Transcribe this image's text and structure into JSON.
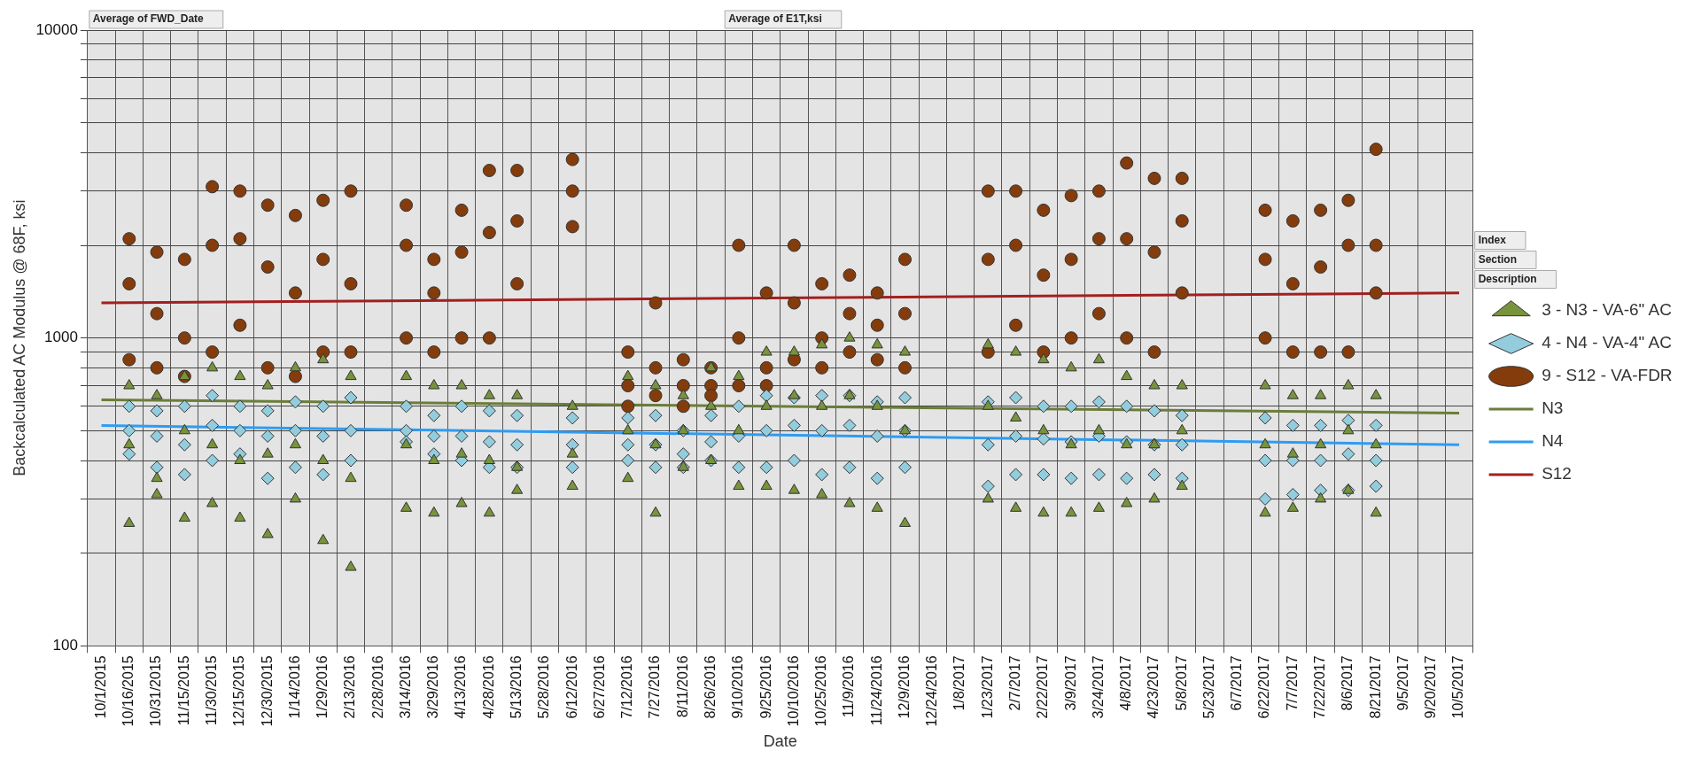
{
  "chart_data": {
    "type": "scatter",
    "xlabel": "Date",
    "ylabel": "Backcalculated AC Modulus @ 68F, ksi",
    "categories": [
      "10/1/2015",
      "10/16/2015",
      "10/31/2015",
      "11/15/2015",
      "11/30/2015",
      "12/15/2015",
      "12/30/2015",
      "1/14/2016",
      "1/29/2016",
      "2/13/2016",
      "2/28/2016",
      "3/14/2016",
      "3/29/2016",
      "4/13/2016",
      "4/28/2016",
      "5/13/2016",
      "5/28/2016",
      "6/12/2016",
      "6/27/2016",
      "7/12/2016",
      "7/27/2016",
      "8/11/2016",
      "8/26/2016",
      "9/10/2016",
      "9/25/2016",
      "10/10/2016",
      "10/25/2016",
      "11/9/2016",
      "11/24/2016",
      "12/9/2016",
      "12/24/2016",
      "1/8/2017",
      "1/23/2017",
      "2/7/2017",
      "2/22/2017",
      "3/9/2017",
      "3/24/2017",
      "4/8/2017",
      "4/23/2017",
      "5/8/2017",
      "5/23/2017",
      "6/7/2017",
      "6/22/2017",
      "7/7/2017",
      "7/22/2017",
      "8/6/2017",
      "8/21/2017",
      "9/5/2017",
      "9/20/2017",
      "10/5/2017"
    ],
    "ylim": [
      100,
      10000
    ],
    "log": "y",
    "grid": true,
    "legend": "right",
    "yticks": [
      100,
      {
        "value": 200,
        "label": null
      },
      {
        "value": 300,
        "label": null
      },
      {
        "value": 400,
        "label": null
      },
      {
        "value": 500,
        "label": null
      },
      {
        "value": 600,
        "label": null
      },
      {
        "value": 700,
        "label": null
      },
      {
        "value": 800,
        "label": null
      },
      {
        "value": 900,
        "label": null
      },
      1000,
      {
        "value": 2000,
        "label": null
      },
      {
        "value": 3000,
        "label": null
      },
      {
        "value": 4000,
        "label": null
      },
      {
        "value": 5000,
        "label": null
      },
      {
        "value": 6000,
        "label": null
      },
      {
        "value": 7000,
        "label": null
      },
      {
        "value": 8000,
        "label": null
      },
      {
        "value": 9000,
        "label": null
      },
      10000
    ],
    "annotations": [
      "Average of FWD_Date",
      "Average of E1T,ksi",
      "Index",
      "Section",
      "Description"
    ],
    "series": [
      {
        "name": "3 - N3 - VA-6\" AC",
        "type": "scatter",
        "marker": "triangle",
        "color": "#77933c",
        "x": [
          "10/16/2015",
          "10/16/2015",
          "10/16/2015",
          "10/31/2015",
          "10/31/2015",
          "10/31/2015",
          "11/15/2015",
          "11/15/2015",
          "11/15/2015",
          "11/30/2015",
          "11/30/2015",
          "11/30/2015",
          "12/15/2015",
          "12/15/2015",
          "12/15/2015",
          "12/30/2015",
          "12/30/2015",
          "12/30/2015",
          "1/14/2016",
          "1/14/2016",
          "1/14/2016",
          "1/29/2016",
          "1/29/2016",
          "1/29/2016",
          "2/13/2016",
          "2/13/2016",
          "2/13/2016",
          "3/14/2016",
          "3/14/2016",
          "3/14/2016",
          "3/29/2016",
          "3/29/2016",
          "3/29/2016",
          "4/13/2016",
          "4/13/2016",
          "4/13/2016",
          "4/28/2016",
          "4/28/2016",
          "4/28/2016",
          "5/13/2016",
          "5/13/2016",
          "5/13/2016",
          "6/12/2016",
          "6/12/2016",
          "6/12/2016",
          "7/12/2016",
          "7/12/2016",
          "7/12/2016",
          "7/27/2016",
          "7/27/2016",
          "7/27/2016",
          "8/11/2016",
          "8/11/2016",
          "8/11/2016",
          "8/26/2016",
          "8/26/2016",
          "8/26/2016",
          "9/10/2016",
          "9/10/2016",
          "9/10/2016",
          "9/25/2016",
          "9/25/2016",
          "9/25/2016",
          "10/10/2016",
          "10/10/2016",
          "10/10/2016",
          "10/25/2016",
          "10/25/2016",
          "10/25/2016",
          "11/9/2016",
          "11/9/2016",
          "11/9/2016",
          "11/24/2016",
          "11/24/2016",
          "11/24/2016",
          "12/9/2016",
          "12/9/2016",
          "12/9/2016",
          "1/23/2017",
          "1/23/2017",
          "1/23/2017",
          "2/7/2017",
          "2/7/2017",
          "2/7/2017",
          "2/22/2017",
          "2/22/2017",
          "2/22/2017",
          "3/9/2017",
          "3/9/2017",
          "3/9/2017",
          "3/24/2017",
          "3/24/2017",
          "3/24/2017",
          "4/8/2017",
          "4/8/2017",
          "4/8/2017",
          "4/23/2017",
          "4/23/2017",
          "4/23/2017",
          "5/8/2017",
          "5/8/2017",
          "5/8/2017",
          "6/22/2017",
          "6/22/2017",
          "6/22/2017",
          "7/7/2017",
          "7/7/2017",
          "7/7/2017",
          "7/22/2017",
          "7/22/2017",
          "7/22/2017",
          "8/6/2017",
          "8/6/2017",
          "8/6/2017",
          "8/21/2017",
          "8/21/2017",
          "8/21/2017"
        ],
        "values": [
          700,
          450,
          250,
          650,
          350,
          310,
          750,
          500,
          260,
          800,
          450,
          290,
          750,
          400,
          260,
          700,
          420,
          230,
          800,
          450,
          300,
          850,
          400,
          220,
          750,
          350,
          180,
          750,
          450,
          280,
          700,
          400,
          270,
          700,
          420,
          290,
          650,
          400,
          270,
          650,
          380,
          320,
          600,
          420,
          330,
          750,
          500,
          350,
          700,
          450,
          270,
          650,
          500,
          380,
          800,
          600,
          400,
          750,
          500,
          330,
          900,
          600,
          330,
          900,
          650,
          320,
          950,
          600,
          310,
          1000,
          650,
          290,
          950,
          600,
          280,
          900,
          500,
          250,
          950,
          600,
          300,
          900,
          550,
          280,
          850,
          500,
          270,
          800,
          450,
          270,
          850,
          500,
          280,
          750,
          450,
          290,
          700,
          450,
          300,
          700,
          500,
          330,
          700,
          450,
          270,
          650,
          420,
          280,
          650,
          450,
          300,
          700,
          500,
          320,
          650,
          450,
          270
        ]
      },
      {
        "name": "4 - N4 - VA-4\" AC",
        "type": "scatter",
        "marker": "diamond",
        "color": "#93cddd",
        "x": [
          "10/16/2015",
          "10/16/2015",
          "10/16/2015",
          "10/31/2015",
          "10/31/2015",
          "10/31/2015",
          "11/15/2015",
          "11/15/2015",
          "11/15/2015",
          "11/30/2015",
          "11/30/2015",
          "11/30/2015",
          "12/15/2015",
          "12/15/2015",
          "12/15/2015",
          "12/30/2015",
          "12/30/2015",
          "12/30/2015",
          "1/14/2016",
          "1/14/2016",
          "1/14/2016",
          "1/29/2016",
          "1/29/2016",
          "1/29/2016",
          "2/13/2016",
          "2/13/2016",
          "2/13/2016",
          "3/14/2016",
          "3/14/2016",
          "3/14/2016",
          "3/29/2016",
          "3/29/2016",
          "3/29/2016",
          "4/13/2016",
          "4/13/2016",
          "4/13/2016",
          "4/28/2016",
          "4/28/2016",
          "4/28/2016",
          "5/13/2016",
          "5/13/2016",
          "5/13/2016",
          "6/12/2016",
          "6/12/2016",
          "6/12/2016",
          "7/12/2016",
          "7/12/2016",
          "7/12/2016",
          "7/27/2016",
          "7/27/2016",
          "7/27/2016",
          "8/11/2016",
          "8/11/2016",
          "8/11/2016",
          "8/26/2016",
          "8/26/2016",
          "8/26/2016",
          "9/10/2016",
          "9/10/2016",
          "9/10/2016",
          "9/25/2016",
          "9/25/2016",
          "9/25/2016",
          "10/10/2016",
          "10/10/2016",
          "10/10/2016",
          "10/25/2016",
          "10/25/2016",
          "10/25/2016",
          "11/9/2016",
          "11/9/2016",
          "11/9/2016",
          "11/24/2016",
          "11/24/2016",
          "11/24/2016",
          "12/9/2016",
          "12/9/2016",
          "12/9/2016",
          "1/23/2017",
          "1/23/2017",
          "1/23/2017",
          "2/7/2017",
          "2/7/2017",
          "2/7/2017",
          "2/22/2017",
          "2/22/2017",
          "2/22/2017",
          "3/9/2017",
          "3/9/2017",
          "3/9/2017",
          "3/24/2017",
          "3/24/2017",
          "3/24/2017",
          "4/8/2017",
          "4/8/2017",
          "4/8/2017",
          "4/23/2017",
          "4/23/2017",
          "4/23/2017",
          "5/8/2017",
          "5/8/2017",
          "5/8/2017",
          "6/22/2017",
          "6/22/2017",
          "6/22/2017",
          "7/7/2017",
          "7/7/2017",
          "7/7/2017",
          "7/22/2017",
          "7/22/2017",
          "7/22/2017",
          "8/6/2017",
          "8/6/2017",
          "8/6/2017",
          "8/21/2017",
          "8/21/2017",
          "8/21/2017"
        ],
        "values": [
          600,
          500,
          420,
          580,
          480,
          380,
          600,
          450,
          360,
          650,
          520,
          400,
          600,
          500,
          420,
          580,
          480,
          350,
          620,
          500,
          380,
          600,
          480,
          360,
          640,
          500,
          400,
          600,
          500,
          460,
          560,
          480,
          420,
          600,
          480,
          400,
          580,
          460,
          380,
          560,
          450,
          380,
          550,
          450,
          380,
          550,
          450,
          400,
          560,
          450,
          380,
          500,
          420,
          380,
          560,
          460,
          400,
          600,
          480,
          380,
          650,
          500,
          380,
          640,
          520,
          400,
          650,
          500,
          360,
          650,
          520,
          380,
          620,
          480,
          350,
          640,
          500,
          380,
          620,
          450,
          330,
          640,
          480,
          360,
          600,
          470,
          360,
          600,
          460,
          350,
          620,
          480,
          360,
          600,
          460,
          350,
          580,
          450,
          360,
          560,
          450,
          350,
          550,
          400,
          300,
          520,
          400,
          310,
          520,
          400,
          320,
          540,
          420,
          320,
          520,
          400,
          330
        ]
      },
      {
        "name": "9 - S12 - VA-FDR",
        "type": "scatter",
        "marker": "circle",
        "color": "#843c0c",
        "x": [
          "10/16/2015",
          "10/16/2015",
          "10/16/2015",
          "10/31/2015",
          "10/31/2015",
          "10/31/2015",
          "11/15/2015",
          "11/15/2015",
          "11/15/2015",
          "11/30/2015",
          "11/30/2015",
          "11/30/2015",
          "12/15/2015",
          "12/15/2015",
          "12/15/2015",
          "12/30/2015",
          "12/30/2015",
          "12/30/2015",
          "1/14/2016",
          "1/14/2016",
          "1/14/2016",
          "1/29/2016",
          "1/29/2016",
          "1/29/2016",
          "2/13/2016",
          "2/13/2016",
          "2/13/2016",
          "3/14/2016",
          "3/14/2016",
          "3/14/2016",
          "3/29/2016",
          "3/29/2016",
          "3/29/2016",
          "4/13/2016",
          "4/13/2016",
          "4/13/2016",
          "4/28/2016",
          "4/28/2016",
          "4/28/2016",
          "5/13/2016",
          "5/13/2016",
          "5/13/2016",
          "6/12/2016",
          "6/12/2016",
          "6/12/2016",
          "7/12/2016",
          "7/12/2016",
          "7/12/2016",
          "7/27/2016",
          "7/27/2016",
          "7/27/2016",
          "8/11/2016",
          "8/11/2016",
          "8/11/2016",
          "8/26/2016",
          "8/26/2016",
          "8/26/2016",
          "9/10/2016",
          "9/10/2016",
          "9/10/2016",
          "9/25/2016",
          "9/25/2016",
          "9/25/2016",
          "10/10/2016",
          "10/10/2016",
          "10/10/2016",
          "10/25/2016",
          "10/25/2016",
          "10/25/2016",
          "11/9/2016",
          "11/9/2016",
          "11/9/2016",
          "11/24/2016",
          "11/24/2016",
          "11/24/2016",
          "12/9/2016",
          "12/9/2016",
          "12/9/2016",
          "1/23/2017",
          "1/23/2017",
          "1/23/2017",
          "2/7/2017",
          "2/7/2017",
          "2/7/2017",
          "2/22/2017",
          "2/22/2017",
          "2/22/2017",
          "3/9/2017",
          "3/9/2017",
          "3/9/2017",
          "3/24/2017",
          "3/24/2017",
          "3/24/2017",
          "4/8/2017",
          "4/8/2017",
          "4/8/2017",
          "4/23/2017",
          "4/23/2017",
          "4/23/2017",
          "5/8/2017",
          "5/8/2017",
          "5/8/2017",
          "6/22/2017",
          "6/22/2017",
          "6/22/2017",
          "7/7/2017",
          "7/7/2017",
          "7/7/2017",
          "7/22/2017",
          "7/22/2017",
          "7/22/2017",
          "8/6/2017",
          "8/6/2017",
          "8/6/2017",
          "8/21/2017",
          "8/21/2017",
          "8/21/2017"
        ],
        "values": [
          2100,
          1500,
          850,
          1900,
          1200,
          800,
          1800,
          1000,
          750,
          3100,
          2000,
          900,
          3000,
          2100,
          1100,
          2700,
          1700,
          800,
          2500,
          1400,
          750,
          2800,
          1800,
          900,
          3000,
          1500,
          900,
          2700,
          2000,
          1000,
          1800,
          1400,
          900,
          2600,
          1900,
          1000,
          3500,
          2200,
          1000,
          3500,
          2400,
          1500,
          3800,
          3000,
          2300,
          900,
          700,
          600,
          1300,
          800,
          650,
          850,
          700,
          600,
          800,
          700,
          650,
          2000,
          1000,
          700,
          1400,
          800,
          700,
          2000,
          1300,
          850,
          1500,
          1000,
          800,
          1600,
          1200,
          900,
          1400,
          1100,
          850,
          1800,
          1200,
          800,
          3000,
          1800,
          900,
          3000,
          2000,
          1100,
          2600,
          1600,
          900,
          2900,
          1800,
          1000,
          3000,
          2100,
          1200,
          3700,
          2100,
          1000,
          3300,
          1900,
          900,
          3300,
          2400,
          1400,
          2600,
          1800,
          1000,
          2400,
          1500,
          900,
          2600,
          1700,
          900,
          2800,
          2000,
          900,
          4100,
          2000,
          1400
        ]
      },
      {
        "name": "N3",
        "type": "line",
        "marker": "none",
        "color": "#6b7d3a",
        "x": [
          "10/1/2015",
          "10/5/2017"
        ],
        "values": [
          630,
          570
        ]
      },
      {
        "name": "N4",
        "type": "line",
        "marker": "none",
        "color": "#2e9cf2",
        "x": [
          "10/1/2015",
          "10/5/2017"
        ],
        "values": [
          520,
          450
        ]
      },
      {
        "name": "S12",
        "type": "line",
        "marker": "none",
        "color": "#a31f1f",
        "x": [
          "10/1/2015",
          "10/5/2017"
        ],
        "values": [
          1300,
          1400
        ]
      }
    ]
  }
}
